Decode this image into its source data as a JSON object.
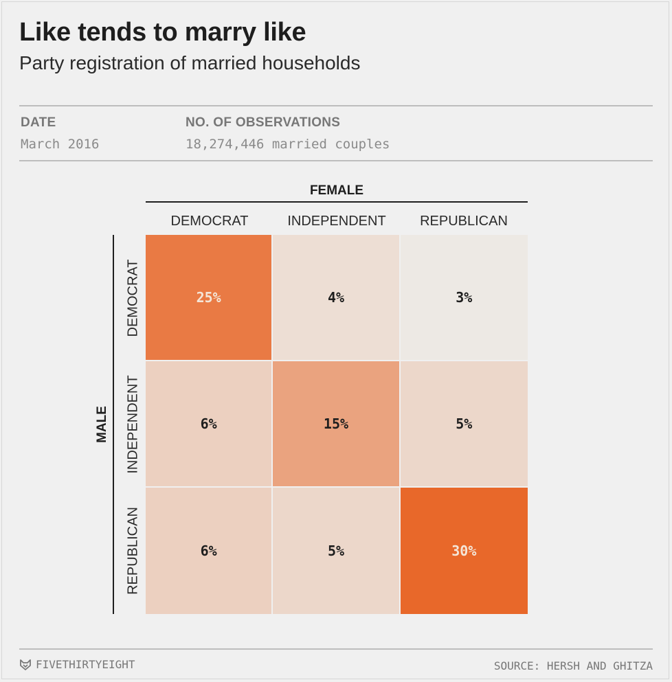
{
  "header": {
    "title": "Like tends to marry like",
    "subtitle": "Party registration of married households"
  },
  "meta": {
    "date_label": "DATE",
    "date_value": "March 2016",
    "obs_label": "NO. OF OBSERVATIONS",
    "obs_value": "18,274,446 married couples"
  },
  "chart_data": {
    "type": "heatmap",
    "x_axis_title": "FEMALE",
    "y_axis_title": "MALE",
    "columns": [
      "DEMOCRAT",
      "INDEPENDENT",
      "REPUBLICAN"
    ],
    "rows": [
      "DEMOCRAT",
      "INDEPENDENT",
      "REPUBLICAN"
    ],
    "values": [
      [
        25,
        4,
        3
      ],
      [
        6,
        15,
        5
      ],
      [
        6,
        5,
        30
      ]
    ],
    "value_labels": [
      [
        "25%",
        "4%",
        "3%"
      ],
      [
        "6%",
        "15%",
        "5%"
      ],
      [
        "6%",
        "5%",
        "30%"
      ]
    ],
    "unit": "%",
    "colors": {
      "min": "#ede9e4",
      "max": "#e8682a",
      "light_text": "#f4e6d8",
      "dark_text": "#1e1e1e"
    }
  },
  "footer": {
    "brand": "FIVETHIRTYEIGHT",
    "brand_icon": "fox-icon",
    "source": "SOURCE: HERSH AND GHITZA"
  }
}
